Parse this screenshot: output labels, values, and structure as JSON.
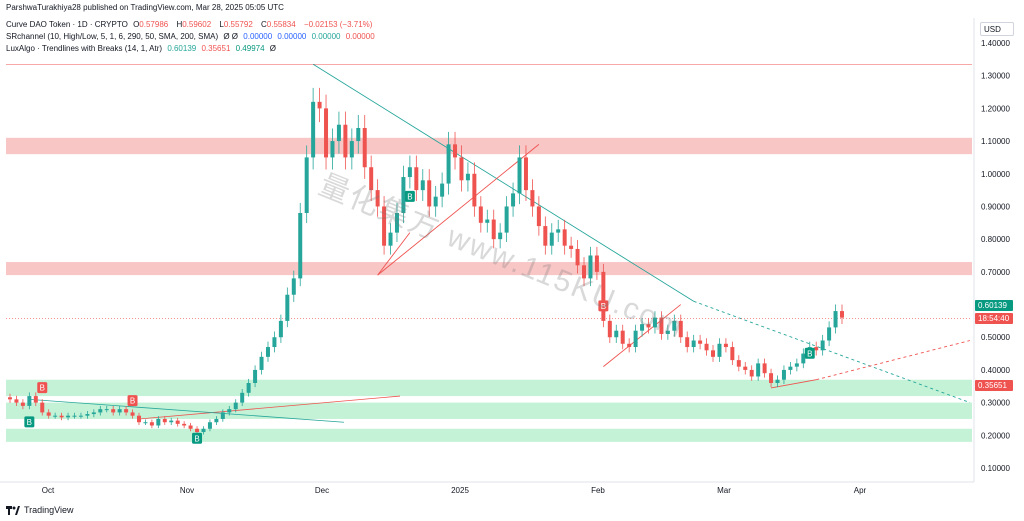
{
  "header": {
    "published": "ParshwaTurakhiya28 published on TradingView.com, Mar 28, 2025 05:05 UTC",
    "symbol": "Curve DAO Token · 1D · CRYPTO",
    "ohlc": [
      {
        "k": "O",
        "v": "0.57986"
      },
      {
        "k": "H",
        "v": "0.59602"
      },
      {
        "k": "L",
        "v": "0.55792"
      },
      {
        "k": "C",
        "v": "0.55834"
      }
    ],
    "change": "−0.02153 (−3.71%)",
    "indicator1_name": "SRchannel (10, High/Low, 5, 1, 6, 290, 50, SMA, 200, SMA)",
    "indicator1_symbols": "Ø Ø",
    "indicator1_values": [
      "0.00000",
      "0.00000",
      "0.00000",
      "0.00000"
    ],
    "indicator2_name": "LuxAlgo · Trendlines with Breaks (14, 1, Atr)",
    "indicator2_values": [
      "0.60139",
      "0.35651",
      "0.49974"
    ],
    "indicator2_symbol": "Ø"
  },
  "currency": "USD",
  "price_tags": {
    "current": "0.60139",
    "countdown": "18:54:40",
    "support": "0.35651"
  },
  "watermark": "量化集方 www.115KU.com",
  "footer": {
    "brand": "TradingView"
  },
  "colors": {
    "up": "#26a69a",
    "down": "#ef5350",
    "resistance_zone": "#f8bcbc",
    "support_zone": "#b9f0cf",
    "trend_down": "#26a69a",
    "trend_up": "#ef5350"
  },
  "chart_data": {
    "type": "candlestick",
    "title": "Curve DAO Token · 1D · CRYPTO",
    "ylim": [
      0.05,
      1.45
    ],
    "y_ticks": [
      "1.40000",
      "1.30000",
      "1.20000",
      "1.10000",
      "1.00000",
      "0.90000",
      "0.80000",
      "0.70000",
      "0.60000",
      "0.50000",
      "0.40000",
      "0.30000",
      "0.20000",
      "0.10000"
    ],
    "x_ticks": [
      "Oct",
      "Nov",
      "Dec",
      "2025",
      "Feb",
      "Mar",
      "Apr"
    ],
    "zones": [
      {
        "type": "resistance",
        "low": 1.06,
        "high": 1.11
      },
      {
        "type": "resistance",
        "low": 0.69,
        "high": 0.73
      },
      {
        "type": "support",
        "low": 0.32,
        "high": 0.37
      },
      {
        "type": "support",
        "low": 0.25,
        "high": 0.3
      },
      {
        "type": "support",
        "low": 0.18,
        "high": 0.22
      }
    ],
    "close_path": [
      0.31,
      0.3,
      0.29,
      0.32,
      0.3,
      0.27,
      0.26,
      0.26,
      0.255,
      0.26,
      0.26,
      0.26,
      0.265,
      0.27,
      0.28,
      0.28,
      0.27,
      0.28,
      0.27,
      0.26,
      0.24,
      0.24,
      0.23,
      0.25,
      0.24,
      0.245,
      0.235,
      0.23,
      0.22,
      0.21,
      0.22,
      0.24,
      0.25,
      0.27,
      0.28,
      0.3,
      0.33,
      0.36,
      0.4,
      0.44,
      0.47,
      0.5,
      0.55,
      0.63,
      0.68,
      0.88,
      1.05,
      1.22,
      1.2,
      1.05,
      1.1,
      1.15,
      1.05,
      1.1,
      1.14,
      1.02,
      0.95,
      0.9,
      0.78,
      0.82,
      0.88,
      0.99,
      1.02,
      0.95,
      0.98,
      0.9,
      0.93,
      0.97,
      1.09,
      1.05,
      0.98,
      1.0,
      0.9,
      0.85,
      0.86,
      0.8,
      0.82,
      0.9,
      0.94,
      1.05,
      0.95,
      0.9,
      0.84,
      0.78,
      0.82,
      0.83,
      0.78,
      0.77,
      0.72,
      0.68,
      0.75,
      0.7,
      0.55,
      0.5,
      0.52,
      0.48,
      0.47,
      0.52,
      0.54,
      0.53,
      0.56,
      0.51,
      0.52,
      0.55,
      0.5,
      0.47,
      0.49,
      0.48,
      0.46,
      0.44,
      0.48,
      0.47,
      0.43,
      0.41,
      0.4,
      0.38,
      0.42,
      0.39,
      0.36,
      0.37,
      0.4,
      0.41,
      0.42,
      0.45,
      0.47,
      0.46,
      0.49,
      0.53,
      0.58,
      0.56
    ],
    "signals": [
      {
        "label": "B",
        "kind": "buy",
        "at": 0.27
      },
      {
        "label": "B",
        "kind": "sell",
        "at": 0.32
      },
      {
        "label": "B",
        "kind": "sell",
        "at": 0.28
      },
      {
        "label": "B",
        "kind": "buy",
        "at": 0.22
      },
      {
        "label": "B",
        "kind": "buy",
        "at": 0.96
      },
      {
        "label": "B",
        "kind": "sell",
        "at": 0.57
      },
      {
        "label": "B",
        "kind": "buy",
        "at": 0.48
      }
    ]
  }
}
